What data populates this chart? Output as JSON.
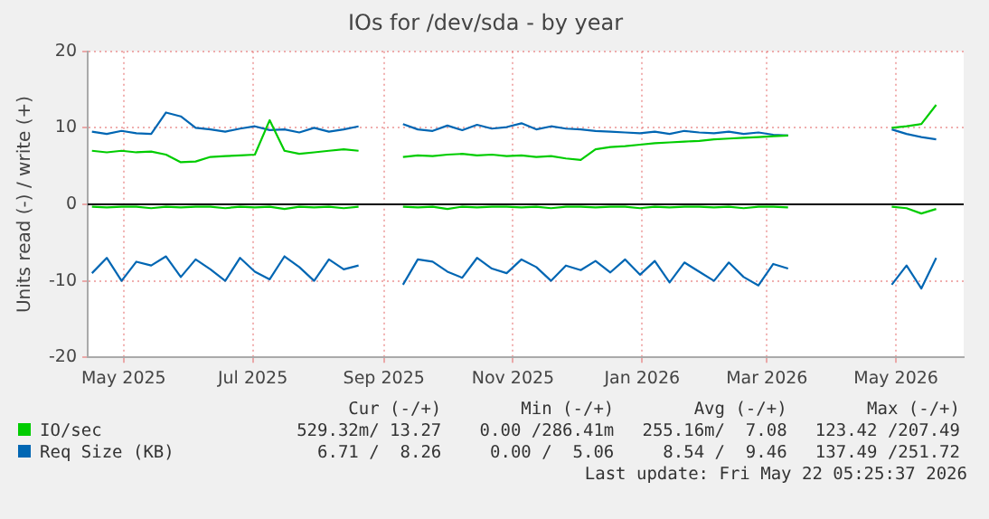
{
  "chart_data": {
    "type": "line",
    "title": "IOs for /dev/sda - by year",
    "ylabel": "Units read (-) / write (+)",
    "x": [
      "2025-04-16",
      "2025-04-23",
      "2025-04-30",
      "2025-05-07",
      "2025-05-14",
      "2025-05-21",
      "2025-05-28",
      "2025-06-04",
      "2025-06-11",
      "2025-06-18",
      "2025-06-25",
      "2025-07-02",
      "2025-07-09",
      "2025-07-16",
      "2025-07-23",
      "2025-07-30",
      "2025-08-06",
      "2025-08-13",
      "2025-08-20",
      "2025-08-27",
      "2025-09-03",
      "2025-09-10",
      "2025-09-17",
      "2025-09-24",
      "2025-10-01",
      "2025-10-08",
      "2025-10-15",
      "2025-10-22",
      "2025-10-29",
      "2025-11-05",
      "2025-11-12",
      "2025-11-19",
      "2025-11-26",
      "2025-12-03",
      "2025-12-10",
      "2025-12-17",
      "2025-12-24",
      "2025-12-31",
      "2026-01-07",
      "2026-01-14",
      "2026-01-21",
      "2026-01-28",
      "2026-02-04",
      "2026-02-11",
      "2026-02-18",
      "2026-02-25",
      "2026-03-04",
      "2026-03-11",
      "2026-03-18",
      "2026-03-25",
      "2026-04-01",
      "2026-04-08",
      "2026-04-15",
      "2026-04-22",
      "2026-04-29",
      "2026-05-06",
      "2026-05-13",
      "2026-05-20"
    ],
    "series": [
      {
        "name": "IO/sec",
        "color": "#00cc00",
        "values": [
          7,
          6.8,
          7,
          6.8,
          6.9,
          6.5,
          5.5,
          5.6,
          6.2,
          6.3,
          6.4,
          6.5,
          11,
          7,
          6.6,
          6.8,
          7,
          7.2,
          7,
          null,
          null,
          6.2,
          6.4,
          6.3,
          6.5,
          6.6,
          6.4,
          6.5,
          6.3,
          6.4,
          6.2,
          6.3,
          6.0,
          5.8,
          7.2,
          7.5,
          7.6,
          7.8,
          8,
          8.1,
          8.2,
          8.3,
          8.5,
          8.6,
          8.7,
          8.8,
          8.9,
          9,
          null,
          null,
          null,
          null,
          null,
          null,
          10,
          10.2,
          10.5,
          13
        ]
      },
      {
        "name": "Req Size (KB)",
        "color": "#0066b3",
        "values": [
          9.5,
          9.2,
          9.6,
          9.3,
          9.2,
          12,
          11.5,
          10,
          9.8,
          9.5,
          9.9,
          10.2,
          9.7,
          9.8,
          9.4,
          10,
          9.5,
          9.8,
          10.2,
          null,
          null,
          10.5,
          9.8,
          9.6,
          10.3,
          9.7,
          10.4,
          9.9,
          10.1,
          10.6,
          9.8,
          10.2,
          9.9,
          9.8,
          9.6,
          9.5,
          9.4,
          9.3,
          9.5,
          9.2,
          9.6,
          9.4,
          9.3,
          9.5,
          9.2,
          9.4,
          9.1,
          9,
          null,
          null,
          null,
          null,
          null,
          null,
          9.8,
          9.2,
          8.8,
          8.5
        ]
      },
      {
        "color": "#00cc00",
        "values": [
          -0.3,
          -0.4,
          -0.3,
          -0.3,
          -0.5,
          -0.3,
          -0.4,
          -0.3,
          -0.3,
          -0.5,
          -0.3,
          -0.4,
          -0.3,
          -0.6,
          -0.3,
          -0.4,
          -0.3,
          -0.5,
          -0.3,
          null,
          null,
          -0.3,
          -0.4,
          -0.3,
          -0.6,
          -0.3,
          -0.4,
          -0.3,
          -0.3,
          -0.4,
          -0.3,
          -0.5,
          -0.3,
          -0.3,
          -0.4,
          -0.3,
          -0.3,
          -0.5,
          -0.3,
          -0.4,
          -0.3,
          -0.3,
          -0.4,
          -0.3,
          -0.5,
          -0.3,
          -0.3,
          -0.4,
          null,
          null,
          null,
          null,
          null,
          null,
          -0.3,
          -0.5,
          -1.2,
          -0.6
        ]
      },
      {
        "color": "#0066b3",
        "values": [
          -9,
          -7,
          -10,
          -7.5,
          -8,
          -6.8,
          -9.5,
          -7.2,
          -8.5,
          -10,
          -7,
          -8.8,
          -9.8,
          -6.8,
          -8.2,
          -10,
          -7.2,
          -8.5,
          -8,
          null,
          null,
          -10.5,
          -7.2,
          -7.5,
          -8.8,
          -9.6,
          -7,
          -8.4,
          -9,
          -7.2,
          -8.2,
          -10,
          -8,
          -8.6,
          -7.4,
          -8.9,
          -7.2,
          -9.2,
          -7.4,
          -10.2,
          -7.6,
          -8.8,
          -10,
          -7.6,
          -9.5,
          -10.6,
          -7.8,
          -8.4,
          null,
          null,
          null,
          null,
          null,
          null,
          -10.5,
          -8,
          -11,
          -7
        ]
      }
    ],
    "xlim": [
      "2025-04-14",
      "2026-06-02"
    ],
    "xticks": [
      {
        "value": "2025-05-01",
        "label": "May 2025"
      },
      {
        "value": "2025-07-01",
        "label": "Jul 2025"
      },
      {
        "value": "2025-09-01",
        "label": "Sep 2025"
      },
      {
        "value": "2025-11-01",
        "label": "Nov 2025"
      },
      {
        "value": "2026-01-01",
        "label": "Jan 2026"
      },
      {
        "value": "2026-03-01",
        "label": "Mar 2026"
      },
      {
        "value": "2026-05-01",
        "label": "May 2026"
      }
    ],
    "ylim": [
      -20,
      20
    ],
    "yticks": [
      -20,
      -10,
      0,
      10,
      20
    ],
    "ref_lines": [
      {
        "axis": "y",
        "value": 0,
        "color": "#000000"
      }
    ],
    "grid": true,
    "legend": "bottom",
    "marker": "none",
    "line_style": "solid",
    "annotations": [
      "Cur (-/+)",
      "Min (-/+)",
      "Avg (-/+)",
      "Max (-/+)",
      "529.32m/ 13.27",
      "0.00 /286.41m",
      "255.16m/  7.08",
      "123.42 /207.49",
      "6.71 /  8.26",
      "0.00 /  5.06",
      "8.54 /  9.46",
      "137.49 /251.72",
      "Last update: Fri May 22 05:25:37 2026"
    ]
  }
}
